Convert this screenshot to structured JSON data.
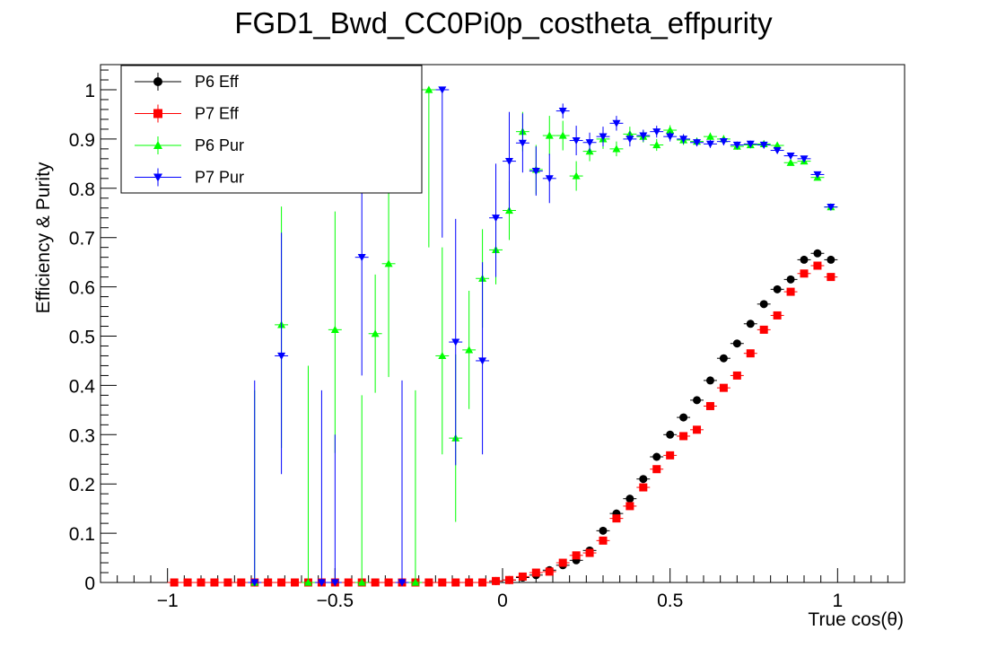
{
  "chart_data": {
    "type": "scatter",
    "title": "FGD1_Bwd_CC0Pi0p_costheta_effpurity",
    "xlabel": "True cos(θ)",
    "ylabel": "Efficiency & Purity",
    "xlim": [
      -1.2,
      1.2
    ],
    "ylim": [
      0,
      1.05
    ],
    "x_ticks": [
      -1,
      -0.5,
      0,
      0.5,
      1
    ],
    "x_tick_labels": [
      "−1",
      "−0.5",
      "0",
      "0.5",
      "1"
    ],
    "y_ticks": [
      0,
      0.1,
      0.2,
      0.3,
      0.4,
      0.5,
      0.6,
      0.7,
      0.8,
      0.9,
      1
    ],
    "y_tick_labels": [
      "0",
      "0.1",
      "0.2",
      "0.3",
      "0.4",
      "0.5",
      "0.6",
      "0.7",
      "0.8",
      "0.9",
      "1"
    ],
    "grid": false,
    "legend_position": "top-left",
    "series": [
      {
        "name": "P6 Eff",
        "color": "#000000",
        "marker": "circle",
        "x": [
          -0.98,
          -0.94,
          -0.9,
          -0.86,
          -0.82,
          -0.78,
          -0.74,
          -0.7,
          -0.66,
          -0.62,
          -0.58,
          -0.54,
          -0.5,
          -0.46,
          -0.42,
          -0.38,
          -0.34,
          -0.3,
          -0.26,
          -0.22,
          -0.18,
          -0.14,
          -0.1,
          -0.06,
          -0.02,
          0.02,
          0.06,
          0.1,
          0.14,
          0.18,
          0.22,
          0.26,
          0.3,
          0.34,
          0.38,
          0.42,
          0.46,
          0.5,
          0.54,
          0.58,
          0.62,
          0.66,
          0.7,
          0.74,
          0.78,
          0.82,
          0.86,
          0.9,
          0.94,
          0.98
        ],
        "y": [
          0,
          0,
          0,
          0,
          0,
          0,
          0,
          0,
          0,
          0,
          0,
          0,
          0,
          0,
          0,
          0,
          0,
          0,
          0,
          0,
          0,
          0,
          0,
          0,
          0.003,
          0.005,
          0.01,
          0.015,
          0.025,
          0.035,
          0.045,
          0.065,
          0.105,
          0.14,
          0.17,
          0.21,
          0.255,
          0.3,
          0.335,
          0.37,
          0.41,
          0.455,
          0.485,
          0.525,
          0.565,
          0.595,
          0.615,
          0.655,
          0.668,
          0.655
        ]
      },
      {
        "name": "P7 Eff",
        "color": "#ff0000",
        "marker": "square",
        "x": [
          -0.98,
          -0.94,
          -0.9,
          -0.86,
          -0.82,
          -0.78,
          -0.74,
          -0.7,
          -0.66,
          -0.62,
          -0.58,
          -0.54,
          -0.5,
          -0.46,
          -0.42,
          -0.38,
          -0.34,
          -0.3,
          -0.26,
          -0.22,
          -0.18,
          -0.14,
          -0.1,
          -0.06,
          -0.02,
          0.02,
          0.06,
          0.1,
          0.14,
          0.18,
          0.22,
          0.26,
          0.3,
          0.34,
          0.38,
          0.42,
          0.46,
          0.5,
          0.54,
          0.58,
          0.62,
          0.66,
          0.7,
          0.74,
          0.78,
          0.82,
          0.86,
          0.9,
          0.94,
          0.98
        ],
        "y": [
          0,
          0,
          0,
          0,
          0,
          0,
          0,
          0,
          0,
          0,
          0,
          0,
          0,
          0,
          0,
          0,
          0,
          0,
          0,
          0,
          0,
          0,
          0,
          0,
          0.003,
          0.005,
          0.012,
          0.02,
          0.022,
          0.04,
          0.055,
          0.06,
          0.085,
          0.13,
          0.155,
          0.193,
          0.23,
          0.258,
          0.297,
          0.31,
          0.358,
          0.395,
          0.42,
          0.465,
          0.513,
          0.542,
          0.59,
          0.627,
          0.643,
          0.62
        ]
      },
      {
        "name": "P6 Pur",
        "color": "#00ff00",
        "marker": "triangle-up",
        "x": [
          -0.74,
          -0.66,
          -0.58,
          -0.5,
          -0.42,
          -0.38,
          -0.34,
          -0.26,
          -0.22,
          -0.18,
          -0.14,
          -0.1,
          -0.06,
          -0.02,
          0.02,
          0.06,
          0.1,
          0.14,
          0.18,
          0.22,
          0.26,
          0.3,
          0.34,
          0.38,
          0.42,
          0.46,
          0.5,
          0.54,
          0.58,
          0.62,
          0.66,
          0.7,
          0.74,
          0.78,
          0.82,
          0.86,
          0.9,
          0.94,
          0.98
        ],
        "y": [
          0,
          0.523,
          0,
          0.513,
          0,
          0.505,
          0.647,
          0,
          1.0,
          0.46,
          0.293,
          0.472,
          0.617,
          0.675,
          0.755,
          0.915,
          0.838,
          0.907,
          0.907,
          0.825,
          0.875,
          0.9,
          0.88,
          0.91,
          0.905,
          0.888,
          0.918,
          0.898,
          0.895,
          0.905,
          0.9,
          0.885,
          0.888,
          0.89,
          0.887,
          0.852,
          0.855,
          0.822,
          0.762
        ],
        "yerr_low": [
          0,
          0.25,
          0,
          0.25,
          0,
          0.12,
          0.23,
          0,
          0.32,
          0.2,
          0.17,
          0.12,
          0.1,
          0.07,
          0.06,
          0.04,
          0.05,
          0.04,
          0.03,
          0.03,
          0.02,
          0.02,
          0.015,
          0.015,
          0.012,
          0.012,
          0.01,
          0.01,
          0.008,
          0.008,
          0.008,
          0.007,
          0.007,
          0.007,
          0.006,
          0.006,
          0.006,
          0.006,
          0.006
        ],
        "yerr_high": [
          0.39,
          0.24,
          0.44,
          0.24,
          0.38,
          0.12,
          0.23,
          0.39,
          0,
          0.22,
          0.17,
          0.12,
          0.1,
          0.07,
          0.06,
          0.04,
          0.05,
          0.04,
          0.03,
          0.03,
          0.02,
          0.02,
          0.015,
          0.015,
          0.012,
          0.012,
          0.01,
          0.01,
          0.008,
          0.008,
          0.008,
          0.007,
          0.007,
          0.007,
          0.006,
          0.006,
          0.006,
          0.006,
          0.006
        ]
      },
      {
        "name": "P7 Pur",
        "color": "#0000ff",
        "marker": "triangle-down",
        "x": [
          -0.74,
          -0.66,
          -0.54,
          -0.5,
          -0.42,
          -0.3,
          -0.18,
          -0.14,
          -0.06,
          -0.02,
          0.02,
          0.06,
          0.1,
          0.14,
          0.18,
          0.22,
          0.26,
          0.3,
          0.34,
          0.38,
          0.42,
          0.46,
          0.5,
          0.54,
          0.58,
          0.62,
          0.66,
          0.7,
          0.74,
          0.78,
          0.82,
          0.86,
          0.9,
          0.94,
          0.98
        ],
        "y": [
          0,
          0.46,
          0,
          0,
          0.66,
          0,
          1.0,
          0.488,
          0.45,
          0.74,
          0.855,
          0.892,
          0.835,
          0.82,
          0.957,
          0.897,
          0.893,
          0.905,
          0.932,
          0.9,
          0.907,
          0.915,
          0.905,
          0.9,
          0.893,
          0.89,
          0.895,
          0.888,
          0.89,
          0.888,
          0.877,
          0.866,
          0.86,
          0.828,
          0.762
        ],
        "yerr_low": [
          0,
          0.24,
          0,
          0,
          0.24,
          0,
          0.3,
          0.25,
          0.19,
          0.12,
          0.1,
          0.06,
          0.05,
          0.05,
          0.015,
          0.03,
          0.02,
          0.02,
          0.015,
          0.015,
          0.012,
          0.012,
          0.01,
          0.01,
          0.008,
          0.008,
          0.008,
          0.007,
          0.007,
          0.007,
          0.006,
          0.006,
          0.006,
          0.006,
          0.006
        ],
        "yerr_high": [
          0.41,
          0.25,
          0.39,
          0.3,
          0.24,
          0.41,
          0,
          0.25,
          0.2,
          0.11,
          0.1,
          0.06,
          0.05,
          0.05,
          0.015,
          0.03,
          0.02,
          0.02,
          0.015,
          0.015,
          0.012,
          0.012,
          0.01,
          0.01,
          0.008,
          0.008,
          0.008,
          0.007,
          0.007,
          0.007,
          0.006,
          0.006,
          0.006,
          0.006,
          0.006
        ]
      }
    ]
  }
}
